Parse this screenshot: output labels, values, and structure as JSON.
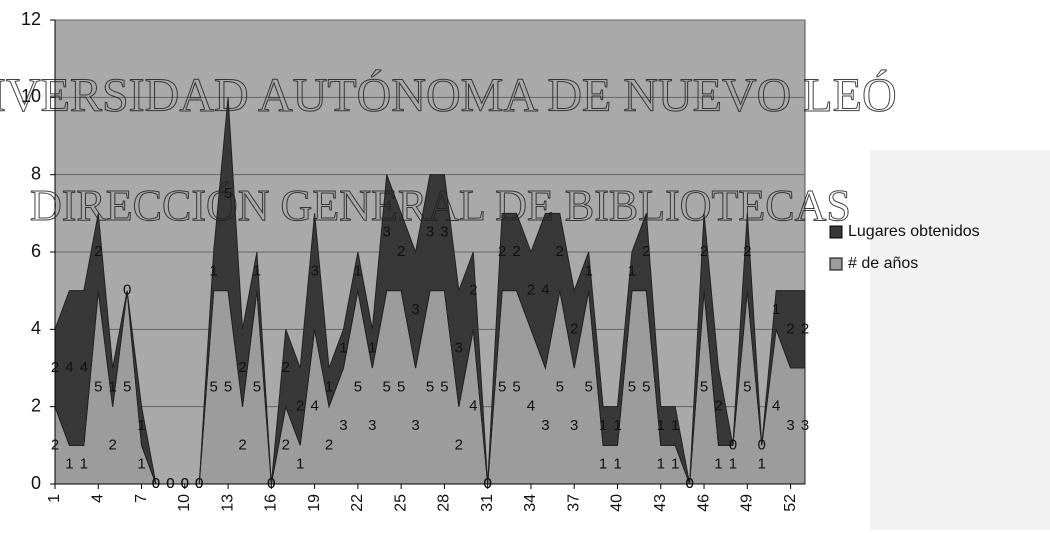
{
  "chart_data": {
    "type": "stacked-area",
    "categories": [
      "1",
      null,
      null,
      "4",
      null,
      null,
      "7",
      null,
      null,
      "10",
      null,
      null,
      "13",
      null,
      null,
      "16",
      null,
      null,
      "19",
      null,
      null,
      "22",
      null,
      null,
      "25",
      null,
      null,
      "28",
      null,
      null,
      "31",
      null,
      null,
      "34",
      null,
      null,
      "37",
      null,
      null,
      "40",
      null,
      null,
      "43",
      null,
      null,
      "46",
      null,
      null,
      "49",
      null,
      null,
      "52",
      null
    ],
    "series": [
      {
        "name": "# de años",
        "color": "#9c9c9c",
        "values": [
          2,
          1,
          1,
          5,
          2,
          5,
          1,
          0,
          0,
          0,
          0,
          5,
          5,
          2,
          5,
          0,
          2,
          1,
          4,
          2,
          3,
          5,
          3,
          5,
          5,
          3,
          5,
          5,
          2,
          4,
          0,
          5,
          5,
          4,
          3,
          5,
          3,
          5,
          1,
          1,
          5,
          5,
          1,
          1,
          0,
          5,
          1,
          1,
          5,
          1,
          4,
          3,
          3
        ]
      },
      {
        "name": "Lugares obtenidos",
        "color": "#383838",
        "values": [
          2,
          4,
          4,
          2,
          1,
          0,
          1,
          0,
          0,
          0,
          0,
          1,
          5,
          2,
          1,
          0,
          2,
          2,
          3,
          1,
          1,
          1,
          1,
          3,
          2,
          3,
          3,
          3,
          3,
          2,
          0,
          2,
          2,
          2,
          4,
          2,
          2,
          1,
          1,
          1,
          1,
          2,
          1,
          1,
          0,
          2,
          2,
          0,
          2,
          0,
          1,
          2,
          2
        ]
      }
    ],
    "ylim": [
      0,
      12
    ],
    "yticks": [
      0,
      2,
      4,
      6,
      8,
      10,
      12
    ],
    "grid": true,
    "watermark": [
      "IVERSIDAD AUTÓNOMA DE NUEVO LEÓ",
      "DIRECCIÓN GENERAL DE BIBLIOTECAS"
    ]
  }
}
